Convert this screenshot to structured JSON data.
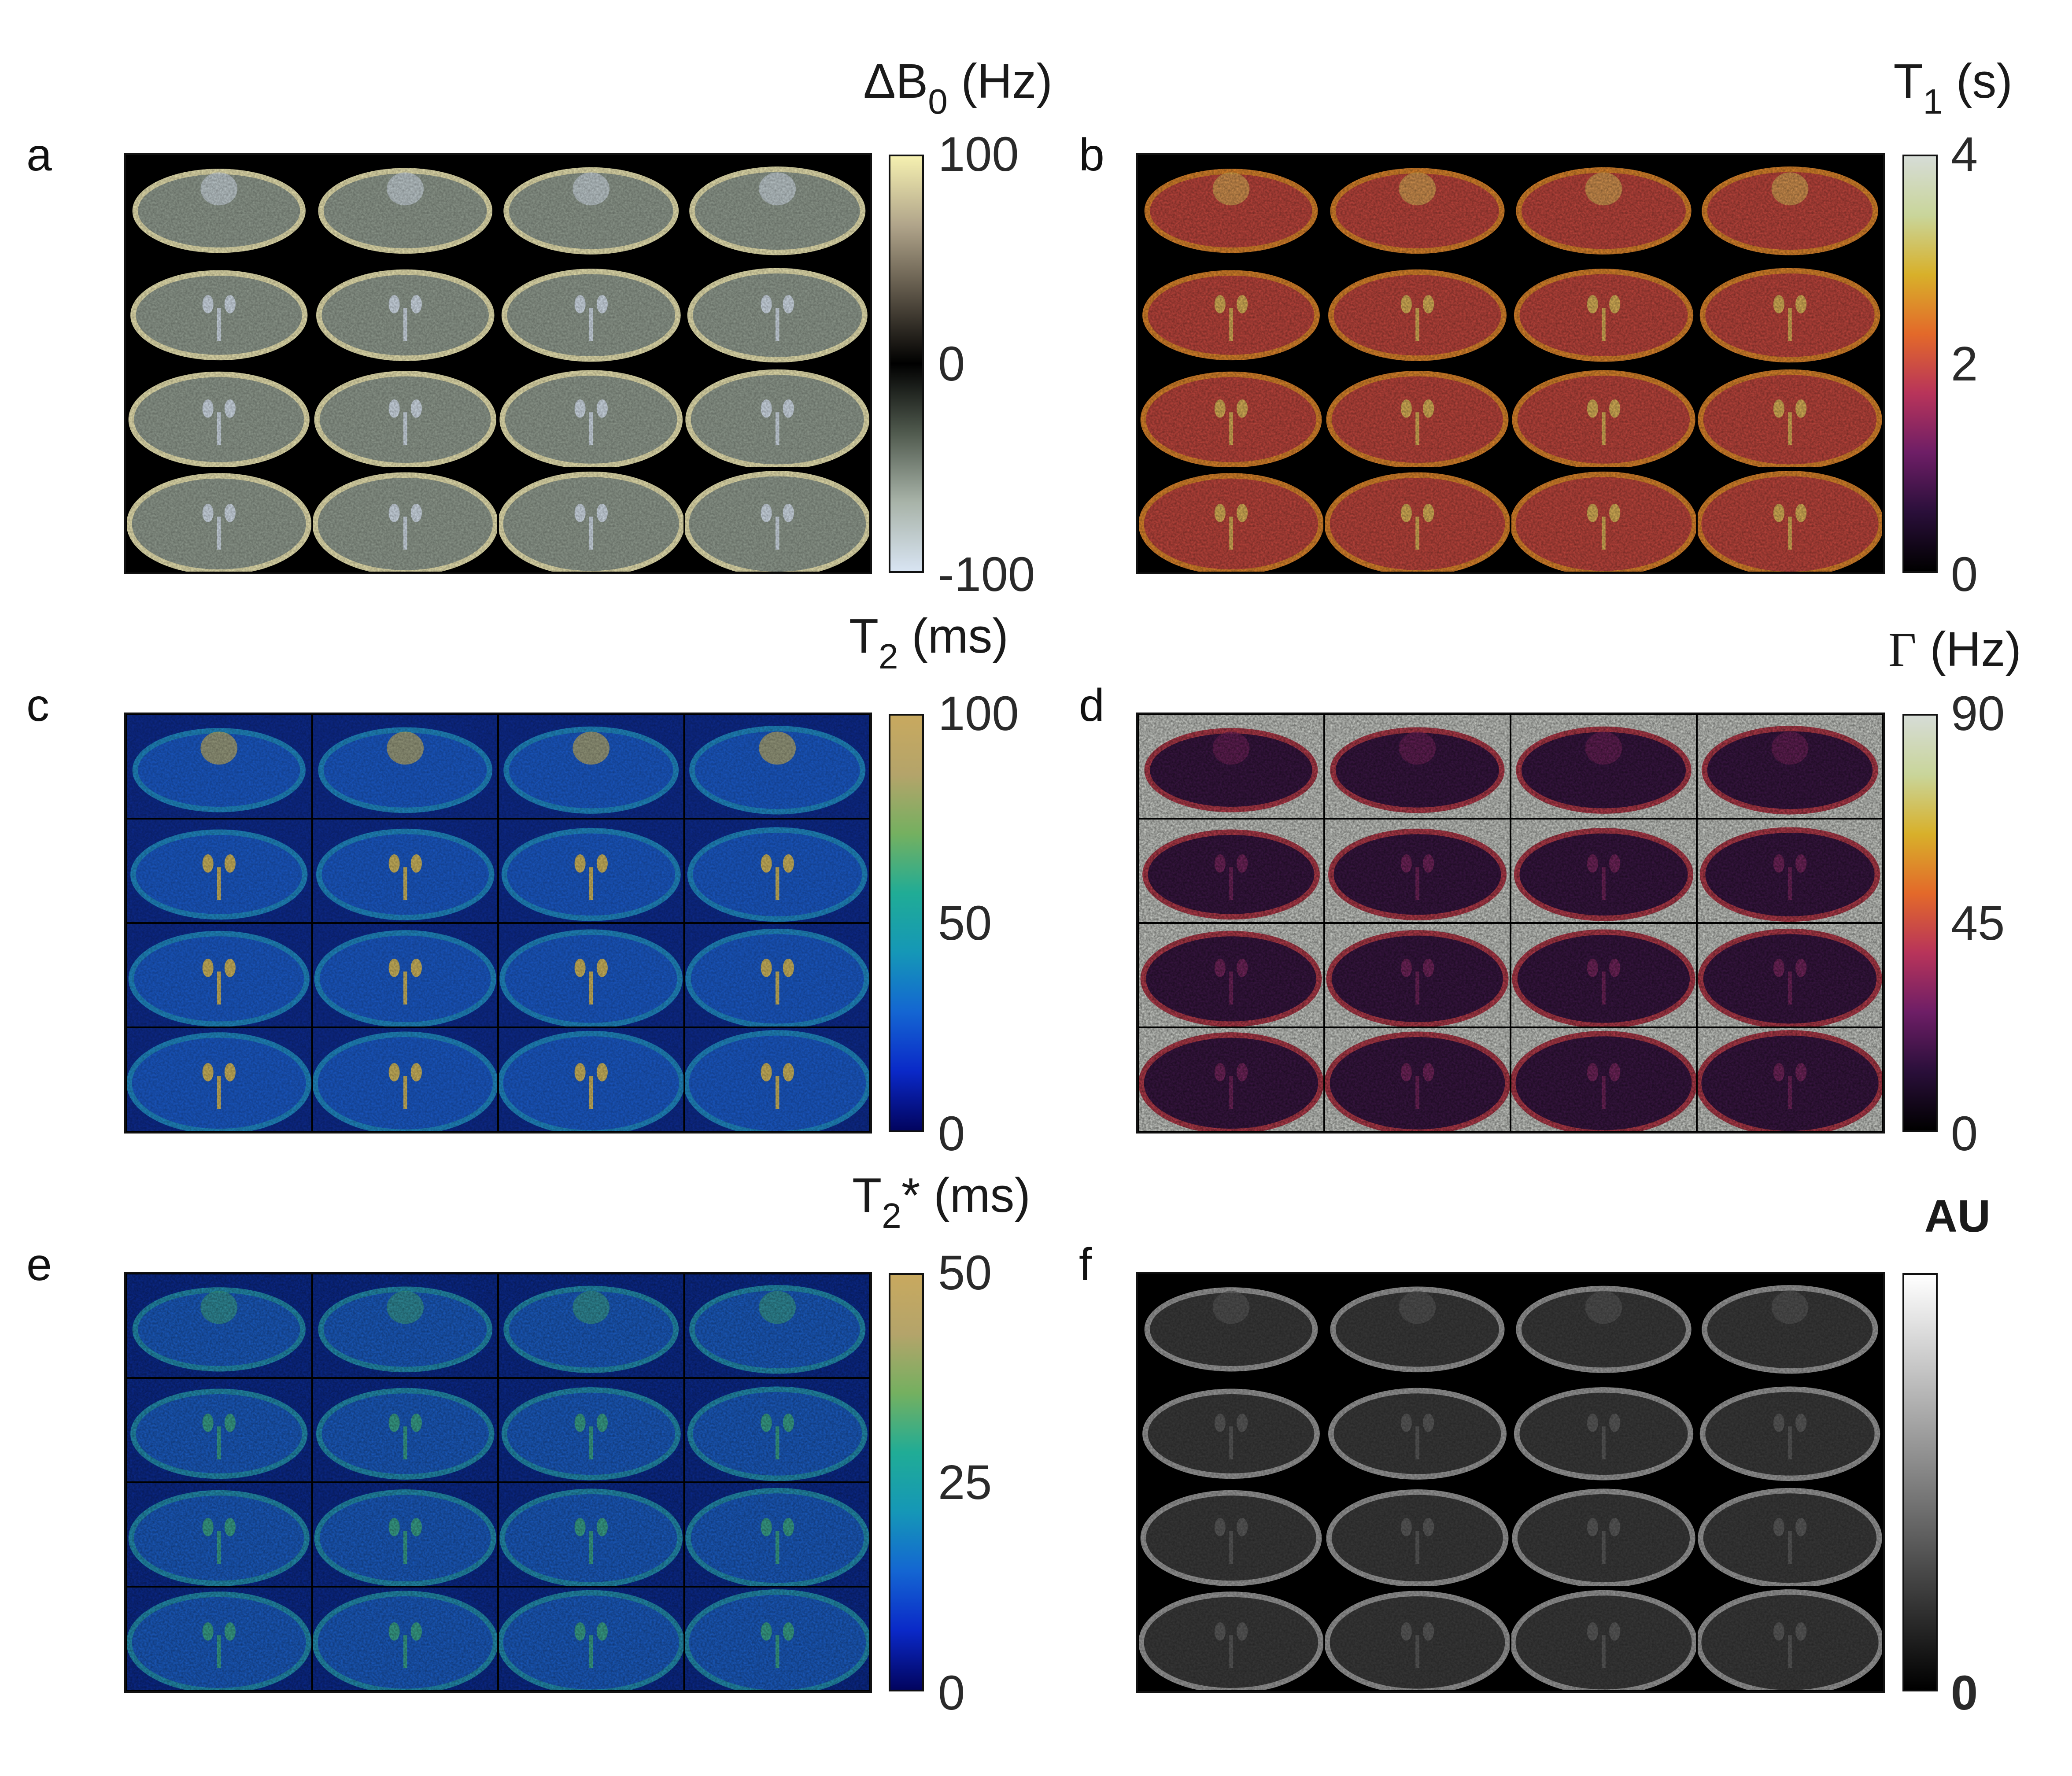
{
  "panels": [
    {
      "letter": "a",
      "title": "ΔB",
      "title_sub": "0",
      "title_unit": "(Hz)",
      "ticks": [
        "100",
        "0",
        "-100"
      ],
      "colormap": [
        "#d8e4f2",
        "#a8b3a8",
        "#505a4e",
        "#000000",
        "#5a5245",
        "#b0a48a",
        "#f5f0b0"
      ],
      "style": "b0"
    },
    {
      "letter": "b",
      "title": "T",
      "title_sub": "1",
      "title_unit": "(s)",
      "ticks": [
        "4",
        "2",
        "0"
      ],
      "colormap": [
        "#000000",
        "#2a0f3a",
        "#6e1e66",
        "#b8345a",
        "#e3692a",
        "#d8b02a",
        "#c9d59a",
        "#d6dcd6"
      ],
      "style": "t1"
    },
    {
      "letter": "c",
      "title": "T",
      "title_sub": "2",
      "title_unit": "(ms)",
      "ticks": [
        "100",
        "50",
        "0"
      ],
      "colormap": [
        "#02045f",
        "#0a29c8",
        "#1466d2",
        "#1597b7",
        "#20ac96",
        "#74b060",
        "#b4a46a",
        "#c8a95f"
      ],
      "style": "t2"
    },
    {
      "letter": "d",
      "title": "Γ",
      "title_sub": "",
      "title_unit": "(Hz)",
      "ticks": [
        "90",
        "45",
        "0"
      ],
      "colormap": [
        "#000000",
        "#2a0f3a",
        "#6e1e66",
        "#b8345a",
        "#e3692a",
        "#d8b02a",
        "#c9d59a",
        "#d6dcd6"
      ],
      "style": "gamma"
    },
    {
      "letter": "e",
      "title": "T",
      "title_sub": "2",
      "title_unit": "* (ms)",
      "ticks": [
        "50",
        "25",
        "0"
      ],
      "colormap": [
        "#02045f",
        "#0a29c8",
        "#1466d2",
        "#1597b7",
        "#20ac96",
        "#74b060",
        "#b4a46a",
        "#c8a95f"
      ],
      "style": "t2s"
    },
    {
      "letter": "f",
      "title": "AU",
      "title_sub": "",
      "title_unit": "",
      "ticks": [
        "",
        "",
        "0"
      ],
      "colormap": [
        "#000000",
        "#ffffff"
      ],
      "style": "mag"
    }
  ]
}
